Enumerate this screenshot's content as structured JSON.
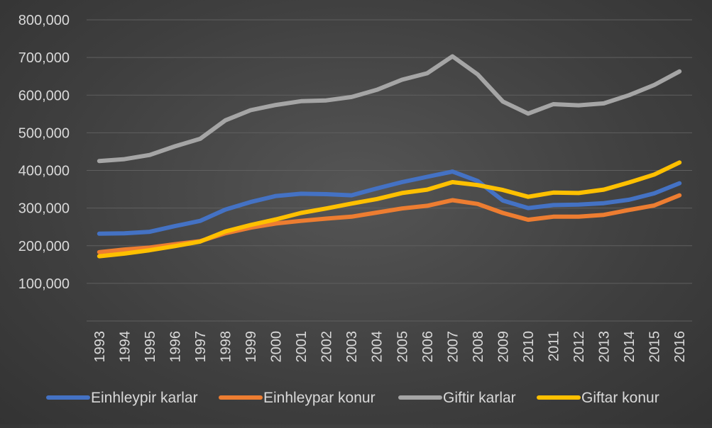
{
  "chart_data": {
    "type": "line",
    "title": "",
    "xlabel": "",
    "ylabel": "",
    "ylim": [
      0,
      800000
    ],
    "yticks": [
      "100,000",
      "200,000",
      "300,000",
      "400,000",
      "500,000",
      "600,000",
      "700,000",
      "800,000"
    ],
    "grid": true,
    "legend_position": "bottom",
    "categories": [
      "1993",
      "1994",
      "1995",
      "1996",
      "1997",
      "1998",
      "1999",
      "2000",
      "2001",
      "2002",
      "2003",
      "2004",
      "2005",
      "2006",
      "2007",
      "2008",
      "2009",
      "2010",
      "2011",
      "2012",
      "2013",
      "2014",
      "2015",
      "2016"
    ],
    "series": [
      {
        "name": "Einhleypir karlar",
        "color": "#4472C4",
        "values": [
          232000,
          233000,
          237000,
          252000,
          266000,
          296000,
          316000,
          332000,
          338000,
          337000,
          334000,
          352000,
          369000,
          383000,
          397000,
          372000,
          320000,
          300000,
          308000,
          309000,
          313000,
          322000,
          339000,
          366000
        ]
      },
      {
        "name": "Einhleypar konur",
        "color": "#ED7D31",
        "values": [
          183000,
          190000,
          195000,
          204000,
          212000,
          233000,
          248000,
          259000,
          266000,
          272000,
          277000,
          288000,
          299000,
          306000,
          321000,
          311000,
          287000,
          269000,
          277000,
          277000,
          282000,
          295000,
          307000,
          334000
        ]
      },
      {
        "name": "Giftir karlar",
        "color": "#A5A5A5",
        "values": [
          425000,
          430000,
          441000,
          464000,
          484000,
          533000,
          560000,
          574000,
          584000,
          586000,
          595000,
          614000,
          641000,
          658000,
          703000,
          655000,
          583000,
          551000,
          576000,
          573000,
          578000,
          600000,
          627000,
          663000
        ]
      },
      {
        "name": "Giftar konur",
        "color": "#FFC000",
        "values": [
          172000,
          179000,
          188000,
          199000,
          211000,
          238000,
          255000,
          270000,
          287000,
          299000,
          312000,
          324000,
          340000,
          349000,
          369000,
          361000,
          348000,
          330000,
          341000,
          340000,
          349000,
          368000,
          389000,
          421000
        ]
      }
    ]
  }
}
